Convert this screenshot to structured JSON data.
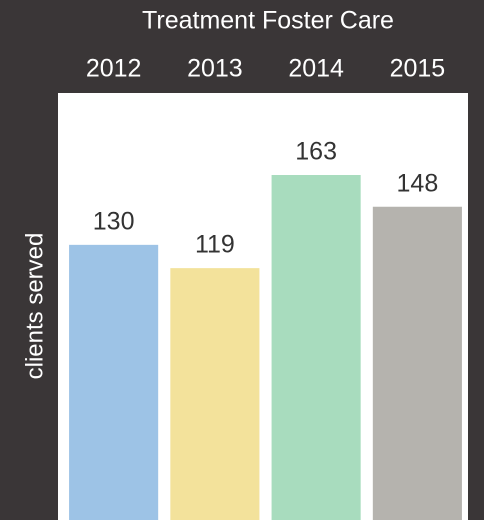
{
  "chart_data": {
    "type": "bar",
    "title": "Treatment Foster Care",
    "y_label": "clients served",
    "categories": [
      "2012",
      "2013",
      "2014",
      "2015"
    ],
    "values": [
      130,
      119,
      163,
      148
    ],
    "colors": [
      "#9dc3e6",
      "#f3e29b",
      "#a8dcbe",
      "#b5b3ae"
    ]
  }
}
